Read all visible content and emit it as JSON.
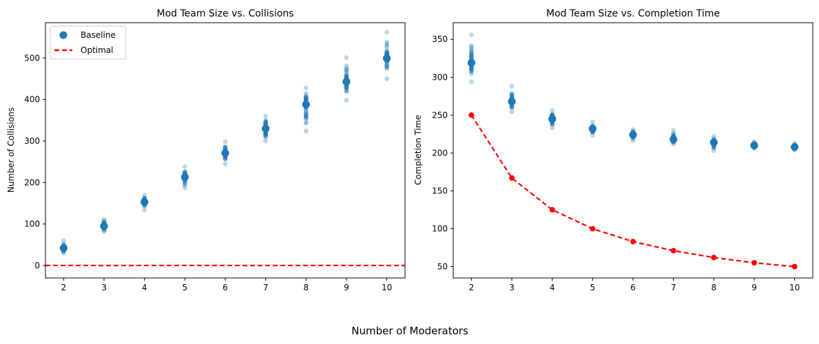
{
  "figure": {
    "xlabel": "Number of Moderators"
  },
  "chart_data": [
    {
      "type": "scatter",
      "title": "Mod Team Size vs. Collisions",
      "xlabel": "Number of Moderators",
      "ylabel": "Number of Collisions",
      "x_ticks": [
        "2",
        "3",
        "4",
        "5",
        "6",
        "7",
        "8",
        "9",
        "10"
      ],
      "y_ticks": [
        "0",
        "100",
        "200",
        "300",
        "400",
        "500"
      ],
      "xlim": [
        1.55,
        10.45
      ],
      "ylim": [
        -30,
        585
      ],
      "legend": {
        "position": "top-left",
        "entries": [
          "Baseline",
          "Optimal"
        ]
      },
      "series": [
        {
          "name": "Baseline",
          "mark": "point",
          "color": "#1f77b4",
          "x": [
            2,
            3,
            4,
            5,
            6,
            7,
            8,
            9,
            10
          ],
          "mean": [
            42,
            95,
            153,
            213,
            271,
            330,
            388,
            443,
            499
          ],
          "spread": [
            [
              29,
              60
            ],
            [
              82,
              111
            ],
            [
              134,
              170
            ],
            [
              187,
              238
            ],
            [
              245,
              298
            ],
            [
              300,
              360
            ],
            [
              324,
              428
            ],
            [
              398,
              501
            ],
            [
              450,
              562
            ]
          ]
        },
        {
          "name": "Optimal",
          "mark": "dashed-line",
          "color": "#ff0000",
          "y": 0
        }
      ]
    },
    {
      "type": "scatter",
      "title": "Mod Team Size vs. Completion Time",
      "xlabel": "Number of Moderators",
      "ylabel": "Completion Time",
      "x_ticks": [
        "2",
        "3",
        "4",
        "5",
        "6",
        "7",
        "8",
        "9",
        "10"
      ],
      "y_ticks": [
        "50",
        "100",
        "150",
        "200",
        "250",
        "300",
        "350"
      ],
      "xlim": [
        1.55,
        10.45
      ],
      "ylim": [
        35,
        372
      ],
      "series": [
        {
          "name": "Baseline",
          "mark": "point",
          "color": "#1f77b4",
          "x": [
            2,
            3,
            4,
            5,
            6,
            7,
            8,
            9,
            10
          ],
          "mean": [
            319,
            268,
            245,
            232,
            224,
            218,
            214,
            210,
            208
          ],
          "spread": [
            [
              294,
              356
            ],
            [
              254,
              288
            ],
            [
              233,
              256
            ],
            [
              223,
              241
            ],
            [
              216,
              231
            ],
            [
              212,
              230
            ],
            [
              203,
              222
            ],
            [
              206,
              215
            ],
            [
              204,
              213
            ]
          ]
        },
        {
          "name": "Optimal",
          "mark": "dashed-line-with-markers",
          "color": "#ff0000",
          "x": [
            2,
            3,
            4,
            5,
            6,
            7,
            8,
            9,
            10
          ],
          "y": [
            250,
            167,
            125,
            100,
            83,
            71,
            62,
            55,
            50
          ]
        }
      ]
    }
  ]
}
